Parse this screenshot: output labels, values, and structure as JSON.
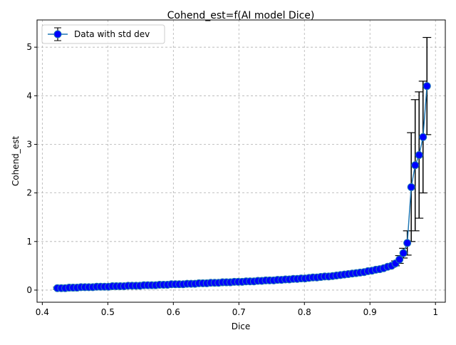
{
  "chart_data": {
    "type": "errorbar_line",
    "title": "Cohend_est=f(AI model Dice)",
    "x_label": "Dice",
    "y_label": "Cohend_est",
    "x": [
      0.423,
      0.429,
      0.435,
      0.441,
      0.447,
      0.453,
      0.459,
      0.465,
      0.471,
      0.477,
      0.483,
      0.489,
      0.495,
      0.501,
      0.507,
      0.513,
      0.519,
      0.525,
      0.531,
      0.537,
      0.543,
      0.549,
      0.555,
      0.561,
      0.567,
      0.573,
      0.579,
      0.585,
      0.591,
      0.597,
      0.603,
      0.609,
      0.615,
      0.621,
      0.627,
      0.633,
      0.639,
      0.645,
      0.651,
      0.657,
      0.663,
      0.669,
      0.675,
      0.681,
      0.687,
      0.693,
      0.699,
      0.705,
      0.711,
      0.717,
      0.723,
      0.729,
      0.735,
      0.741,
      0.747,
      0.753,
      0.759,
      0.765,
      0.771,
      0.777,
      0.783,
      0.789,
      0.795,
      0.801,
      0.807,
      0.813,
      0.819,
      0.825,
      0.831,
      0.837,
      0.843,
      0.849,
      0.855,
      0.861,
      0.867,
      0.873,
      0.879,
      0.885,
      0.891,
      0.897,
      0.903,
      0.909,
      0.915,
      0.921,
      0.927,
      0.933,
      0.939,
      0.945,
      0.951,
      0.957,
      0.963,
      0.969,
      0.975,
      0.981,
      0.987
    ],
    "series": [
      {
        "name": "Data with std dev",
        "color": "#0000ff",
        "line_color": "#1f77b4",
        "error_color": "#000000",
        "values": [
          0.04,
          0.04,
          0.04,
          0.05,
          0.05,
          0.05,
          0.06,
          0.06,
          0.06,
          0.06,
          0.07,
          0.07,
          0.07,
          0.07,
          0.08,
          0.08,
          0.08,
          0.08,
          0.09,
          0.09,
          0.09,
          0.09,
          0.1,
          0.1,
          0.1,
          0.1,
          0.11,
          0.11,
          0.11,
          0.12,
          0.12,
          0.12,
          0.12,
          0.13,
          0.13,
          0.13,
          0.14,
          0.14,
          0.14,
          0.15,
          0.15,
          0.15,
          0.16,
          0.16,
          0.16,
          0.17,
          0.17,
          0.17,
          0.18,
          0.18,
          0.18,
          0.19,
          0.19,
          0.2,
          0.2,
          0.2,
          0.21,
          0.21,
          0.22,
          0.22,
          0.23,
          0.23,
          0.24,
          0.24,
          0.25,
          0.26,
          0.26,
          0.27,
          0.28,
          0.28,
          0.29,
          0.3,
          0.31,
          0.32,
          0.33,
          0.34,
          0.35,
          0.36,
          0.37,
          0.39,
          0.4,
          0.42,
          0.43,
          0.45,
          0.48,
          0.5,
          0.55,
          0.63,
          0.76,
          0.97,
          2.12,
          2.57,
          2.78,
          3.15,
          4.2
        ],
        "errors": [
          0.02,
          0.02,
          0.02,
          0.02,
          0.02,
          0.02,
          0.02,
          0.02,
          0.02,
          0.02,
          0.02,
          0.02,
          0.02,
          0.02,
          0.02,
          0.02,
          0.02,
          0.02,
          0.02,
          0.02,
          0.02,
          0.02,
          0.02,
          0.02,
          0.02,
          0.02,
          0.02,
          0.02,
          0.02,
          0.02,
          0.02,
          0.02,
          0.02,
          0.02,
          0.02,
          0.02,
          0.02,
          0.02,
          0.02,
          0.02,
          0.02,
          0.02,
          0.02,
          0.02,
          0.02,
          0.02,
          0.02,
          0.02,
          0.02,
          0.02,
          0.02,
          0.02,
          0.02,
          0.02,
          0.02,
          0.02,
          0.02,
          0.02,
          0.02,
          0.02,
          0.02,
          0.02,
          0.02,
          0.02,
          0.02,
          0.02,
          0.02,
          0.02,
          0.02,
          0.02,
          0.02,
          0.02,
          0.02,
          0.02,
          0.02,
          0.02,
          0.02,
          0.02,
          0.02,
          0.02,
          0.03,
          0.03,
          0.03,
          0.03,
          0.03,
          0.03,
          0.05,
          0.08,
          0.1,
          0.25,
          1.12,
          1.35,
          1.3,
          1.15,
          1.0
        ]
      }
    ],
    "xlim": [
      0.392,
      1.015
    ],
    "xticks": [
      0.4,
      0.5,
      0.6,
      0.7,
      0.8,
      0.9,
      1.0
    ],
    "ylim": [
      -0.25,
      5.56
    ],
    "yticks": [
      0,
      1,
      2,
      3,
      4,
      5
    ],
    "grid": true,
    "legend": "upper left"
  }
}
